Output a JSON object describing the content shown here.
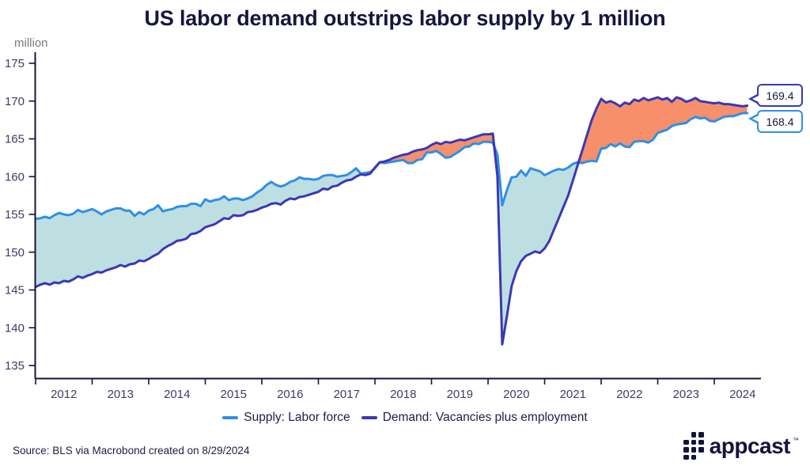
{
  "chart_data": {
    "type": "area",
    "title": "US labor demand outstrips labor supply by 1 million",
    "ylabel": "million",
    "xlabel": "",
    "ylim": [
      135,
      175
    ],
    "y_ticks": [
      175,
      170,
      165,
      160,
      155,
      150,
      145,
      140,
      135
    ],
    "x_ticks": [
      2012,
      2013,
      2014,
      2015,
      2016,
      2017,
      2018,
      2019,
      2020,
      2021,
      2022,
      2023,
      2024
    ],
    "x_start_year": 2012,
    "frequency": "monthly",
    "grid": false,
    "legend_position": "bottom",
    "axis_color": "#14143C",
    "tick_label_color": "#3D3D66",
    "fill_colors": {
      "supply_surplus": "#BEDFE1",
      "demand_surplus": "#F78F6B"
    },
    "series": [
      {
        "name": "Supply: Labor force",
        "color": "#2F8FE6",
        "values": [
          154.4,
          154.5,
          154.7,
          154.5,
          154.9,
          155.2,
          155.0,
          154.9,
          155.1,
          155.6,
          155.3,
          155.5,
          155.7,
          155.4,
          155.0,
          155.4,
          155.6,
          155.8,
          155.8,
          155.5,
          155.5,
          154.8,
          155.3,
          155.0,
          155.5,
          155.7,
          156.2,
          155.4,
          155.6,
          155.7,
          156.0,
          156.1,
          156.1,
          156.4,
          156.4,
          156.1,
          157.0,
          156.7,
          156.9,
          157.0,
          157.4,
          156.9,
          157.1,
          157.1,
          156.9,
          157.1,
          157.4,
          157.9,
          158.3,
          158.9,
          159.3,
          158.9,
          158.7,
          158.9,
          159.3,
          159.5,
          159.9,
          159.7,
          159.7,
          159.6,
          159.7,
          160.1,
          160.2,
          160.2,
          160.0,
          160.1,
          160.2,
          160.6,
          161.1,
          160.4,
          160.5,
          160.6,
          161.1,
          161.9,
          161.8,
          161.9,
          162.0,
          162.1,
          162.2,
          161.8,
          161.8,
          162.2,
          162.3,
          163.2,
          163.2,
          163.4,
          163.0,
          162.5,
          162.6,
          163.0,
          163.4,
          163.9,
          164.0,
          164.4,
          164.3,
          164.6,
          164.6,
          164.5,
          162.9,
          156.2,
          158.2,
          159.9,
          160.0,
          160.8,
          160.1,
          161.1,
          160.9,
          160.7,
          160.2,
          160.5,
          160.8,
          161.0,
          160.9,
          161.2,
          161.7,
          161.9,
          161.8,
          162.0,
          162.1,
          162.0,
          163.7,
          163.8,
          164.3,
          164.0,
          164.4,
          164.0,
          163.9,
          164.6,
          164.7,
          164.7,
          164.5,
          164.9,
          165.8,
          166.0,
          166.2,
          166.7,
          166.9,
          167.0,
          167.1,
          167.6,
          167.9,
          167.7,
          167.8,
          167.4,
          167.3,
          167.6,
          167.9,
          168.0,
          168.0,
          168.2,
          168.4,
          168.4
        ]
      },
      {
        "name": "Demand: Vacancies plus employment",
        "color": "#3B38B4",
        "values": [
          145.4,
          145.7,
          145.9,
          145.7,
          146.0,
          145.9,
          146.2,
          146.1,
          146.4,
          146.8,
          146.6,
          146.9,
          147.1,
          147.4,
          147.3,
          147.6,
          147.8,
          148.0,
          148.3,
          148.1,
          148.4,
          148.5,
          148.9,
          148.8,
          149.1,
          149.5,
          149.8,
          150.4,
          150.8,
          151.1,
          151.5,
          151.6,
          151.8,
          152.4,
          152.5,
          152.8,
          153.3,
          153.5,
          153.7,
          154.1,
          154.5,
          154.4,
          154.9,
          154.8,
          154.9,
          155.3,
          155.4,
          155.6,
          155.9,
          156.1,
          156.4,
          156.5,
          156.3,
          156.8,
          157.1,
          157.0,
          157.3,
          157.4,
          157.6,
          157.8,
          158.0,
          158.4,
          158.3,
          158.7,
          158.8,
          159.2,
          159.5,
          159.6,
          160.0,
          160.3,
          160.2,
          160.4,
          161.2,
          161.9,
          162.0,
          162.2,
          162.5,
          162.7,
          162.9,
          163.0,
          163.3,
          163.5,
          163.6,
          163.8,
          164.2,
          164.5,
          164.3,
          164.6,
          164.5,
          164.7,
          164.9,
          164.8,
          165.0,
          165.2,
          165.4,
          165.6,
          165.6,
          165.7,
          160.0,
          137.8,
          141.5,
          145.5,
          147.5,
          148.8,
          149.5,
          149.8,
          150.1,
          149.9,
          150.5,
          151.5,
          153.0,
          154.5,
          156.0,
          157.5,
          159.5,
          161.5,
          163.5,
          165.5,
          167.5,
          169.0,
          170.3,
          169.8,
          170.0,
          169.7,
          169.3,
          169.8,
          169.6,
          170.2,
          170.0,
          170.4,
          170.1,
          170.3,
          170.5,
          170.2,
          170.4,
          169.9,
          170.5,
          170.3,
          169.9,
          170.1,
          170.4,
          170.0,
          169.9,
          169.8,
          169.7,
          169.8,
          169.6,
          169.6,
          169.5,
          169.4,
          169.3,
          169.4
        ]
      }
    ],
    "end_labels": {
      "demand": "169.4",
      "supply": "168.4"
    }
  },
  "footer": {
    "source": "Source: BLS via Macrobond created on 8/29/2024",
    "logo_text": "appcast",
    "logo_tm": "™"
  }
}
